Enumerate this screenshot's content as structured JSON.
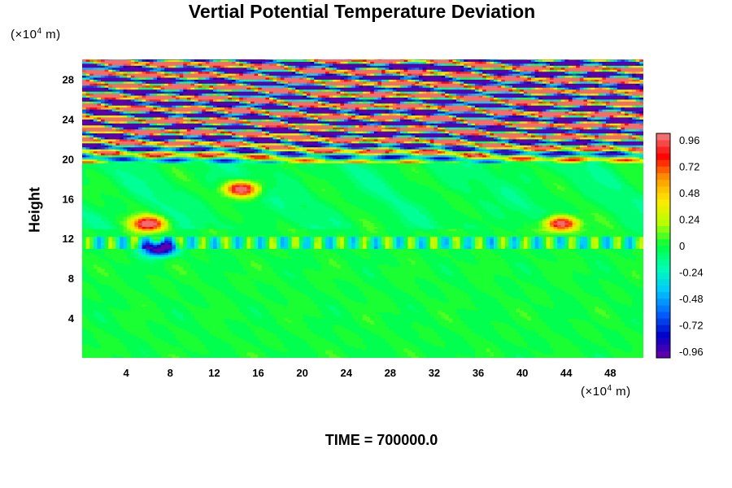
{
  "chart_data": {
    "type": "heatmap",
    "title": "Vertial Potential Temperature Deviation",
    "xlabel": "",
    "ylabel": "Height",
    "x_unit": "(×10⁴ m)",
    "y_unit": "(×10⁴ m)",
    "xlim": [
      0,
      51
    ],
    "ylim": [
      0,
      30
    ],
    "x_ticks": [
      4,
      8,
      12,
      16,
      20,
      24,
      28,
      32,
      36,
      40,
      44,
      48
    ],
    "y_ticks": [
      4,
      8,
      12,
      16,
      20,
      24,
      28
    ],
    "colorbar": {
      "range": [
        -1.02,
        1.02
      ],
      "levels": 34,
      "tick_values": [
        0.96,
        0.72,
        0.48,
        0.24,
        0,
        -0.24,
        -0.48,
        -0.72,
        -0.96
      ],
      "tick_labels": [
        "0.96",
        "0.72",
        "0.48",
        "0.24",
        "0",
        "-0.24",
        "-0.48",
        "-0.72",
        "-0.96"
      ],
      "colors_low_to_high": [
        "#6a00a8",
        "#0000c8",
        "#0064ff",
        "#00c8ff",
        "#00ffb4",
        "#00ff3c",
        "#b4ff00",
        "#ffeb00",
        "#ff9600",
        "#ff0000",
        "#f08080"
      ]
    },
    "grid": false,
    "features": [
      {
        "desc": "strong wave oscillations",
        "y_range": [
          19.5,
          30
        ],
        "x_range": [
          0,
          51
        ]
      },
      {
        "desc": "tropopause band",
        "y": 11.5,
        "x_range": [
          0,
          51
        ]
      },
      {
        "desc": "positive anomaly",
        "x": 6,
        "y": 13.5
      },
      {
        "desc": "positive anomaly",
        "x": 14.5,
        "y": 17
      },
      {
        "desc": "positive anomaly",
        "x": 43.5,
        "y": 13.5
      },
      {
        "desc": "negative anomaly",
        "x": 7,
        "y": 11
      },
      {
        "desc": "negative anomaly",
        "x": 31.5,
        "y": 29.5
      }
    ]
  },
  "footer": {
    "time_label": "TIME = 700000.0"
  }
}
